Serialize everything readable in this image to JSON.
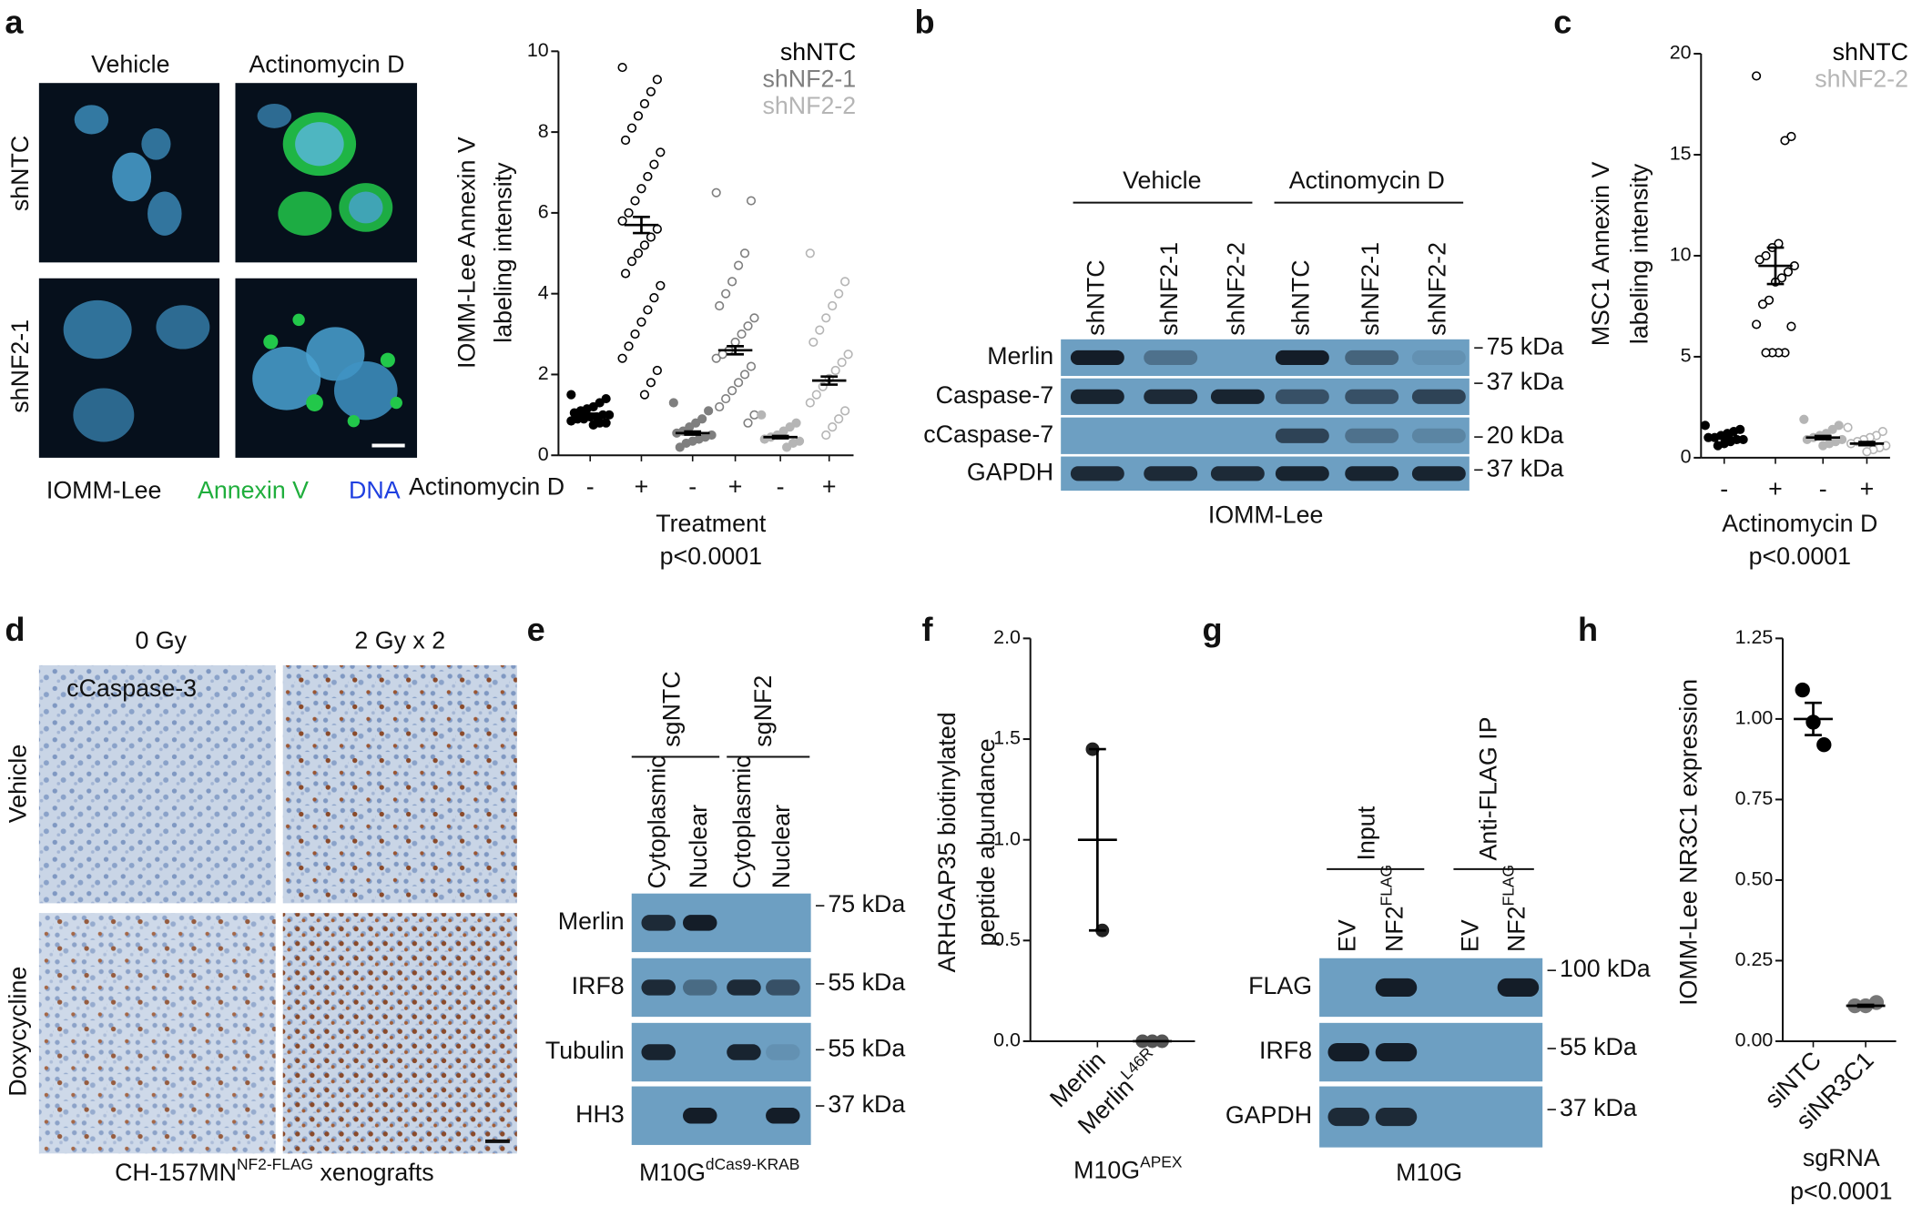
{
  "panels": {
    "a": {
      "letter": "a",
      "columns": [
        "Vehicle",
        "Actinomycin D"
      ],
      "rows": [
        "shNTC",
        "shNF2-1"
      ],
      "caption": [
        "IOMM-Lee",
        "Annexin V",
        "DNA"
      ]
    },
    "b": {
      "letter": "b",
      "groups": [
        "Vehicle",
        "Actinomycin D"
      ],
      "lanes": [
        "shNTC",
        "shNF2-1",
        "shNF2-2",
        "shNTC",
        "shNF2-1",
        "shNF2-2"
      ],
      "rows": [
        "Merlin",
        "Caspase-7",
        "cCaspase-7",
        "GAPDH"
      ],
      "markers": [
        "75 kDa",
        "37 kDa",
        "20 kDa",
        "37 kDa"
      ],
      "caption": "IOMM-Lee"
    },
    "d": {
      "letter": "d",
      "columns": [
        "0 Gy",
        "2 Gy x 2"
      ],
      "rows": [
        "Vehicle",
        "Doxycycline"
      ],
      "stain": "cCaspase-3",
      "caption": {
        "text": "CH-157MN",
        "sup": "NF2-FLAG",
        "tail": " xenografts"
      }
    },
    "e": {
      "letter": "e",
      "groups": [
        "sgNTC",
        "sgNF2"
      ],
      "lanes": [
        "Cytoplasmic",
        "Nuclear",
        "Cytoplasmic",
        "Nuclear"
      ],
      "rows": [
        "Merlin",
        "IRF8",
        "Tubulin",
        "HH3"
      ],
      "markers": [
        "75 kDa",
        "55 kDa",
        "55 kDa",
        "37 kDa"
      ],
      "caption": {
        "text": "M10G",
        "sup": "dCas9-KRAB"
      }
    },
    "g": {
      "letter": "g",
      "groups": [
        "Input",
        "Anti-FLAG IP"
      ],
      "lanes": [
        "EV",
        {
          "text": "NF2",
          "sup": "FLAG"
        },
        "EV",
        {
          "text": "NF2",
          "sup": "FLAG"
        }
      ],
      "rows": [
        "FLAG",
        "IRF8",
        "GAPDH"
      ],
      "markers": [
        "100 kDa",
        "55 kDa",
        "37 kDa"
      ],
      "caption": "M10G"
    }
  },
  "chart_data": [
    {
      "type": "strip",
      "ylabel": [
        "IOMM-Lee Annexin V",
        "labeling intensity"
      ],
      "row_label": "Actinomycin D",
      "xlabel": "Treatment",
      "note": "p<0.0001",
      "ylim": [
        0,
        10
      ],
      "yticks": [
        0,
        2,
        4,
        6,
        8,
        10
      ],
      "series": [
        {
          "name": "shNTC",
          "color": "#000000"
        },
        {
          "name": "shNF2-1",
          "color": "#7f7f7f"
        },
        {
          "name": "shNF2-2",
          "color": "#b5b5b5"
        }
      ],
      "categories": [
        "-",
        "+",
        "-",
        "+",
        "-",
        "+"
      ],
      "groups": [
        {
          "color": "#000000",
          "points": [
            1.5,
            1.4,
            1.3,
            1.2,
            1.15,
            1.1,
            1.05,
            1.0,
            1.0,
            0.95,
            0.95,
            0.9,
            0.9,
            0.85,
            0.8,
            0.8,
            0.75
          ],
          "mean": 1.0,
          "error": 0.03
        },
        {
          "color": "#000000",
          "points": [
            9.6,
            9.3,
            9.0,
            8.7,
            8.4,
            8.1,
            7.8,
            7.5,
            7.2,
            6.9,
            6.6,
            6.3,
            6.0,
            5.8,
            5.6,
            5.4,
            5.2,
            5.0,
            4.8,
            4.5,
            4.2,
            3.9,
            3.6,
            3.3,
            3.0,
            2.7,
            2.4,
            2.1,
            1.8,
            1.5
          ],
          "mean": 5.7,
          "error": 0.2
        },
        {
          "color": "#7f7f7f",
          "points": [
            1.3,
            1.1,
            0.9,
            0.8,
            0.7,
            0.6,
            0.55,
            0.5,
            0.45,
            0.4,
            0.35,
            0.3,
            0.2
          ],
          "mean": 0.55,
          "error": 0.04
        },
        {
          "color": "#7f7f7f",
          "points": [
            6.5,
            6.3,
            5.0,
            4.7,
            4.3,
            4.0,
            3.7,
            3.4,
            3.2,
            3.0,
            2.8,
            2.6,
            2.5,
            2.4,
            2.2,
            2.0,
            1.8,
            1.6,
            1.4,
            1.2,
            1.0,
            0.8
          ],
          "mean": 2.6,
          "error": 0.1
        },
        {
          "color": "#b5b5b5",
          "points": [
            1.0,
            0.8,
            0.7,
            0.6,
            0.5,
            0.45,
            0.4,
            0.35,
            0.3,
            0.2
          ],
          "mean": 0.45,
          "error": 0.03
        },
        {
          "color": "#b5b5b5",
          "points": [
            5.0,
            4.3,
            4.0,
            3.7,
            3.4,
            3.1,
            2.8,
            2.5,
            2.3,
            2.1,
            1.9,
            1.7,
            1.5,
            1.3,
            1.1,
            0.9,
            0.7,
            0.5
          ],
          "mean": 1.85,
          "error": 0.1
        }
      ]
    },
    {
      "type": "strip",
      "panel": "c",
      "ylabel": [
        "MSC1 Annexin V",
        "labeling intensity"
      ],
      "xlabel": "Actinomycin D",
      "note": "p<0.0001",
      "ylim": [
        0,
        20
      ],
      "yticks": [
        0,
        5,
        10,
        15,
        20
      ],
      "series": [
        {
          "name": "shNTC",
          "color": "#000000"
        },
        {
          "name": "shNF2-2",
          "color": "#b5b5b5"
        }
      ],
      "categories": [
        "-",
        "+",
        "-",
        "+"
      ],
      "groups": [
        {
          "color": "#000000",
          "points": [
            1.6,
            1.4,
            1.3,
            1.2,
            1.1,
            1.0,
            1.0,
            0.9,
            0.9,
            0.8,
            0.7,
            0.6
          ],
          "mean": 1.0,
          "error": 0.05
        },
        {
          "color": "#000000",
          "points": [
            18.9,
            15.9,
            15.7,
            10.6,
            10.4,
            10.0,
            9.8,
            9.5,
            9.2,
            8.9,
            8.7,
            7.8,
            7.6,
            6.6,
            6.5,
            5.2,
            5.2,
            5.2,
            5.2
          ],
          "mean": 9.5,
          "error": 0.9
        },
        {
          "color": "#b5b5b5",
          "points": [
            1.9,
            1.6,
            1.4,
            1.2,
            1.1,
            1.0,
            0.9,
            0.9,
            0.8,
            0.7,
            0.6
          ],
          "mean": 1.0,
          "error": 0.08
        },
        {
          "color": "#b5b5b5",
          "points": [
            1.5,
            1.3,
            1.1,
            1.0,
            0.9,
            0.8,
            0.7,
            0.6,
            0.5,
            0.4,
            0.3
          ],
          "mean": 0.7,
          "error": 0.08
        }
      ]
    },
    {
      "type": "strip",
      "panel": "f",
      "ylabel": [
        "ARHGAP35 biotinylated",
        "peptide abundance"
      ],
      "xlabel": {
        "text": "M10G",
        "sup": "APEX"
      },
      "ylim": [
        0,
        2
      ],
      "yticks": [
        {
          "value": 0,
          "label": "0.0"
        },
        {
          "value": 0.5,
          "label": "0.5"
        },
        {
          "value": 1,
          "label": "1.0"
        },
        {
          "value": 1.5,
          "label": "1.5"
        },
        {
          "value": 2,
          "label": "2.0"
        }
      ],
      "categories": [
        "Merlin",
        {
          "text": "Merlin",
          "sup": "L46R"
        }
      ],
      "groups": [
        {
          "color": "#222222",
          "points": [
            1.45,
            0.55
          ],
          "mean": 1.0,
          "error": 0.45
        },
        {
          "color": "#555555",
          "points": [
            0,
            0,
            0
          ],
          "mean": 0,
          "error": 0
        }
      ]
    },
    {
      "type": "strip",
      "panel": "h",
      "ylabel": [
        "IOMM-Lee NR3C1 expression"
      ],
      "xlabel": "sgRNA",
      "note": "p<0.0001",
      "ylim": [
        0,
        1.25
      ],
      "yticks": [
        {
          "value": 0,
          "label": "0.00"
        },
        {
          "value": 0.25,
          "label": "0.25"
        },
        {
          "value": 0.5,
          "label": "0.50"
        },
        {
          "value": 0.75,
          "label": "0.75"
        },
        {
          "value": 1,
          "label": "1.00"
        },
        {
          "value": 1.25,
          "label": "1.25"
        }
      ],
      "categories": [
        "siNTC",
        "siNR3C1"
      ],
      "groups": [
        {
          "color": "#000000",
          "points": [
            1.09,
            0.99,
            0.92
          ],
          "mean": 1.0,
          "error": 0.05
        },
        {
          "color": "#777777",
          "points": [
            0.11,
            0.11,
            0.12
          ],
          "mean": 0.11,
          "error": 0.003
        }
      ]
    }
  ]
}
